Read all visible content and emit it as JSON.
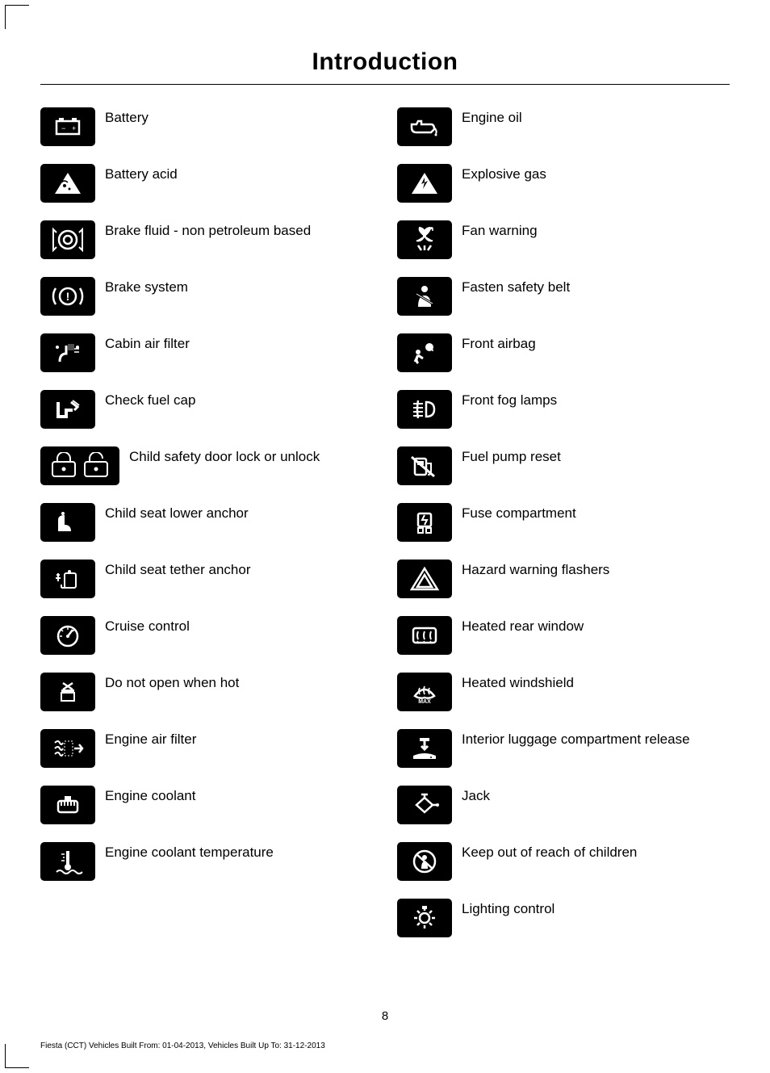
{
  "title": "Introduction",
  "page_number": "8",
  "footer": "Fiesta (CCT) Vehicles Built From: 01-04-2013, Vehicles Built Up To: 31-12-2013",
  "colors": {
    "icon_bg": "#000000",
    "icon_fg": "#ffffff",
    "text": "#000000",
    "page_bg": "#ffffff"
  },
  "left_column": [
    {
      "icon": "battery",
      "label": "Battery"
    },
    {
      "icon": "battery-acid",
      "label": "Battery acid"
    },
    {
      "icon": "brake-fluid",
      "label": "Brake fluid - non petroleum based"
    },
    {
      "icon": "brake-system",
      "label": "Brake system"
    },
    {
      "icon": "cabin-air-filter",
      "label": "Cabin air filter"
    },
    {
      "icon": "check-fuel-cap",
      "label": "Check fuel cap"
    },
    {
      "icon": "child-lock",
      "label": "Child safety door lock or unlock",
      "wide": true
    },
    {
      "icon": "child-seat-lower",
      "label": "Child seat lower anchor"
    },
    {
      "icon": "child-seat-tether",
      "label": "Child seat tether anchor"
    },
    {
      "icon": "cruise-control",
      "label": "Cruise control"
    },
    {
      "icon": "do-not-open-hot",
      "label": "Do not open when hot"
    },
    {
      "icon": "engine-air-filter",
      "label": "Engine air filter"
    },
    {
      "icon": "engine-coolant",
      "label": "Engine coolant"
    },
    {
      "icon": "engine-coolant-temp",
      "label": "Engine coolant temperature"
    }
  ],
  "right_column": [
    {
      "icon": "engine-oil",
      "label": "Engine oil"
    },
    {
      "icon": "explosive-gas",
      "label": "Explosive gas"
    },
    {
      "icon": "fan-warning",
      "label": "Fan warning"
    },
    {
      "icon": "fasten-belt",
      "label": "Fasten safety belt"
    },
    {
      "icon": "front-airbag",
      "label": "Front airbag"
    },
    {
      "icon": "front-fog-lamps",
      "label": "Front fog lamps"
    },
    {
      "icon": "fuel-pump-reset",
      "label": "Fuel pump reset"
    },
    {
      "icon": "fuse-compartment",
      "label": "Fuse compartment"
    },
    {
      "icon": "hazard-flashers",
      "label": "Hazard warning flashers"
    },
    {
      "icon": "heated-rear-window",
      "label": "Heated rear window"
    },
    {
      "icon": "heated-windshield",
      "label": "Heated windshield"
    },
    {
      "icon": "luggage-release",
      "label": "Interior luggage compartment release"
    },
    {
      "icon": "jack",
      "label": "Jack"
    },
    {
      "icon": "keep-out-children",
      "label": "Keep out of reach of children"
    },
    {
      "icon": "lighting-control",
      "label": "Lighting control"
    }
  ]
}
